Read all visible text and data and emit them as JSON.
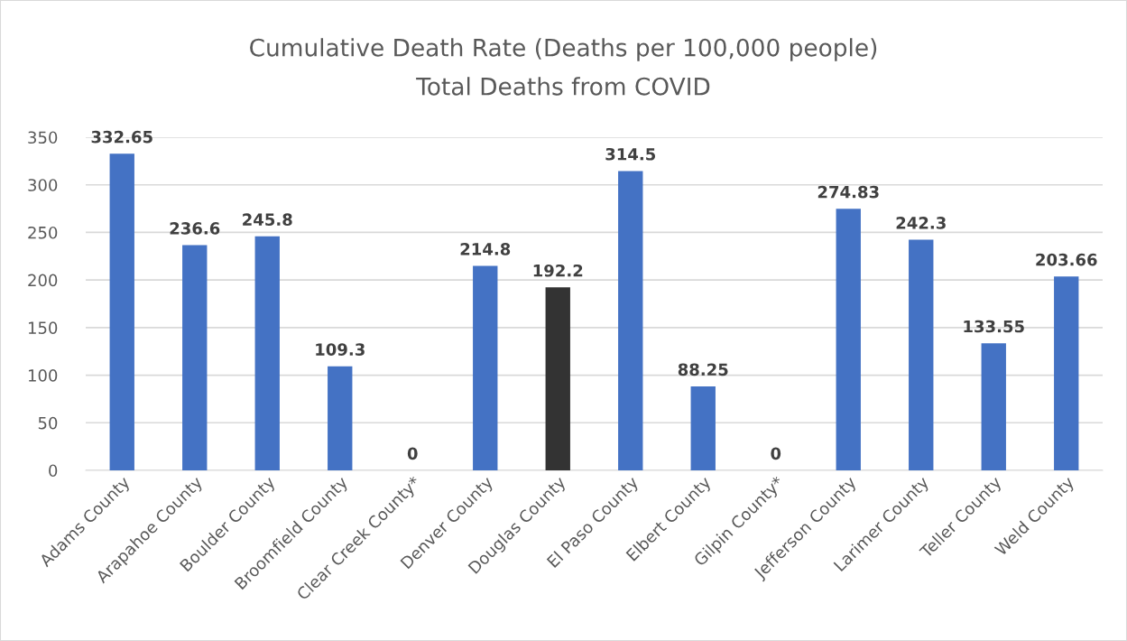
{
  "chart_data": {
    "type": "bar",
    "title": "Cumulative Death Rate (Deaths per 100,000 people)",
    "subtitle": "Total Deaths from COVID",
    "categories": [
      "Adams County",
      "Arapahoe County",
      "Boulder County",
      "Broomfield County",
      "Clear Creek County*",
      "Denver County",
      "Douglas County",
      "El Paso County",
      "Elbert County",
      "Gilpin County*",
      "Jefferson County",
      "Larimer County",
      "Teller County",
      "Weld County"
    ],
    "values": [
      332.65,
      236.6,
      245.8,
      109.3,
      0,
      214.8,
      192.2,
      314.5,
      88.25,
      0,
      274.83,
      242.3,
      133.55,
      203.66
    ],
    "colors": [
      "#4472c4",
      "#4472c4",
      "#4472c4",
      "#4472c4",
      "#4472c4",
      "#4472c4",
      "#333333",
      "#4472c4",
      "#4472c4",
      "#4472c4",
      "#4472c4",
      "#4472c4",
      "#4472c4",
      "#4472c4"
    ],
    "ylim": [
      0,
      350
    ],
    "yticks": [
      0,
      50,
      100,
      150,
      200,
      250,
      300,
      350
    ],
    "grid": "y",
    "data_labels": true,
    "legend": false
  }
}
